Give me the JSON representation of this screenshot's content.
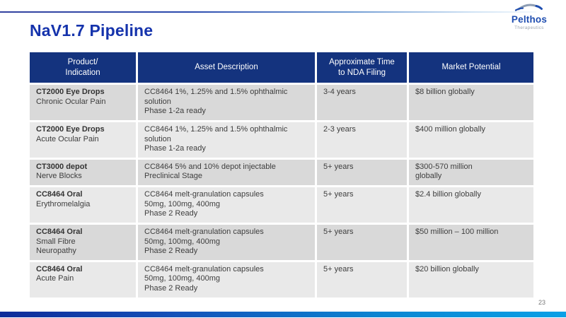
{
  "logo": {
    "name": "Pelthos",
    "subtitle": "Therapeutics"
  },
  "slide": {
    "title": "NaV1.7 Pipeline",
    "page_number": "23"
  },
  "colors": {
    "header_navy": "#14337E",
    "title_blue": "#1533AC",
    "row_dark": "#D9D9D9",
    "row_light": "#E9E9E9",
    "accent_bright_blue": "#0AA0E6",
    "accent_dark_blue": "#0E2B99"
  },
  "table": {
    "headers": [
      {
        "id": "product-indication",
        "lines": [
          "Product/",
          "Indication"
        ]
      },
      {
        "id": "asset-description",
        "lines": [
          "Asset Description"
        ]
      },
      {
        "id": "time-to-nda",
        "lines": [
          "Approximate Time",
          "to NDA Filing"
        ]
      },
      {
        "id": "market-potential",
        "lines": [
          "Market Potential"
        ]
      }
    ],
    "rows": [
      {
        "product": "CT2000 Eye Drops",
        "indication_lines": [
          "Chronic Ocular Pain"
        ],
        "description_lines": [
          "CC8464 1%, 1.25% and 1.5% ophthalmic",
          "solution",
          "Phase 1-2a ready"
        ],
        "time": "3-4 years",
        "market_lines": [
          "$8 billion globally"
        ]
      },
      {
        "product": "CT2000 Eye Drops",
        "indication_lines": [
          "Acute Ocular Pain"
        ],
        "description_lines": [
          "CC8464 1%, 1.25% and 1.5% ophthalmic",
          "solution",
          "Phase 1-2a ready"
        ],
        "time": "2-3 years",
        "market_lines": [
          "$400 million globally"
        ]
      },
      {
        "product": "CT3000 depot",
        "indication_lines": [
          "Nerve Blocks"
        ],
        "description_lines": [
          "CC8464 5% and 10% depot injectable",
          "Preclinical Stage"
        ],
        "time": "5+ years",
        "market_lines": [
          "$300-570 million",
          "globally"
        ]
      },
      {
        "product": "CC8464 Oral",
        "indication_lines": [
          "Erythromelalgia"
        ],
        "description_lines": [
          "CC8464 melt-granulation capsules",
          "50mg, 100mg, 400mg",
          "Phase 2 Ready"
        ],
        "time": "5+ years",
        "market_lines": [
          "$2.4 billion globally"
        ]
      },
      {
        "product": "CC8464 Oral",
        "indication_lines": [
          "Small Fibre",
          "Neuropathy"
        ],
        "description_lines": [
          "CC8464 melt-granulation capsules",
          "50mg, 100mg, 400mg",
          "Phase 2 Ready"
        ],
        "time": "5+ years",
        "market_lines": [
          "$50 million – 100 million"
        ]
      },
      {
        "product": "CC8464 Oral",
        "indication_lines": [
          "Acute Pain"
        ],
        "description_lines": [
          "CC8464 melt-granulation capsules",
          "50mg, 100mg, 400mg",
          "Phase 2 Ready"
        ],
        "time": "5+ years",
        "market_lines": [
          "$20 billion globally"
        ]
      }
    ]
  }
}
